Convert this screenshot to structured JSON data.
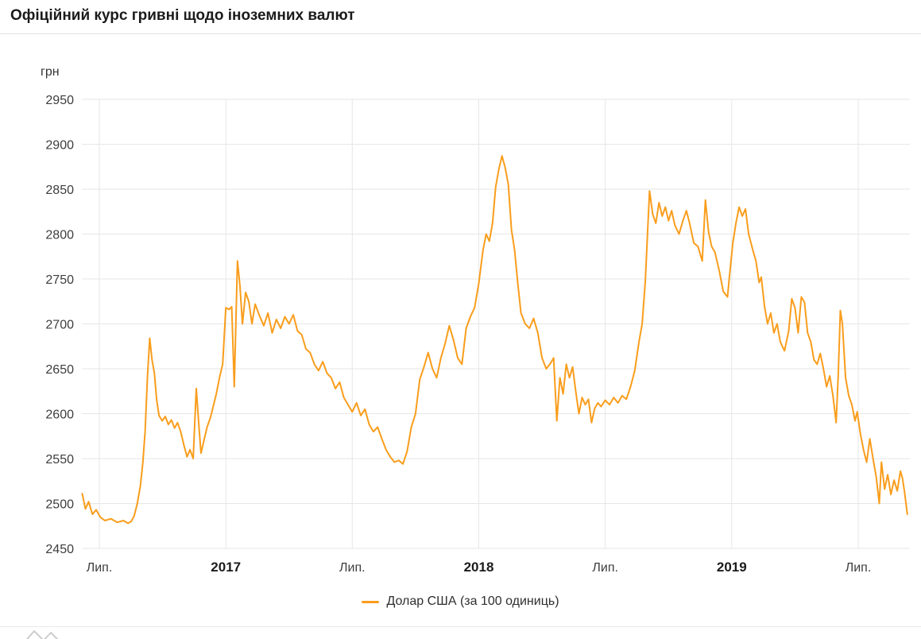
{
  "header": {
    "title": "Офіційний курс гривні щодо іноземних валют"
  },
  "chart": {
    "unit_label": "грн",
    "line_color": "#F99D1C",
    "grid_color": "#e6e6e6",
    "tick_text_color": "#3d3d3d",
    "year_text_color": "#1b1b1b",
    "legend_label": "Долар США (за 100 одиниць)"
  },
  "chart_data": {
    "type": "line",
    "title": "Офіційний курс гривні щодо іноземних валют",
    "xlabel": "",
    "ylabel": "грн",
    "ylim": [
      2450,
      2950
    ],
    "y_ticks": [
      2450,
      2500,
      2550,
      2600,
      2650,
      2700,
      2750,
      2800,
      2850,
      2900,
      2950
    ],
    "x_axis_unit": "months since Лип. (July) 2016; 0 = 2016-07, 6 = 2017-01, 36 = 2019-07",
    "xlim": [
      -0.83,
      38.45
    ],
    "x_ticks": [
      {
        "label": "Лип.",
        "m": 0,
        "bold": false
      },
      {
        "label": "2017",
        "m": 6,
        "bold": true
      },
      {
        "label": "Лип.",
        "m": 12,
        "bold": false
      },
      {
        "label": "2018",
        "m": 18,
        "bold": true
      },
      {
        "label": "Лип.",
        "m": 24,
        "bold": false
      },
      {
        "label": "2019",
        "m": 30,
        "bold": true
      },
      {
        "label": "Лип.",
        "m": 36,
        "bold": false
      }
    ],
    "grid": true,
    "legend_position": "bottom",
    "series": [
      {
        "name": "Долар США (за 100 одиниць)",
        "color": "#F99D1C",
        "points": [
          [
            -0.81,
            2511
          ],
          [
            -0.66,
            2494
          ],
          [
            -0.51,
            2502
          ],
          [
            -0.33,
            2488
          ],
          [
            -0.15,
            2493
          ],
          [
            0.04,
            2485
          ],
          [
            0.26,
            2481
          ],
          [
            0.55,
            2483
          ],
          [
            0.85,
            2479
          ],
          [
            1.14,
            2481
          ],
          [
            1.36,
            2478
          ],
          [
            1.51,
            2480
          ],
          [
            1.65,
            2486
          ],
          [
            1.8,
            2500
          ],
          [
            1.95,
            2520
          ],
          [
            2.06,
            2545
          ],
          [
            2.17,
            2580
          ],
          [
            2.28,
            2640
          ],
          [
            2.39,
            2684
          ],
          [
            2.5,
            2660
          ],
          [
            2.61,
            2645
          ],
          [
            2.72,
            2615
          ],
          [
            2.83,
            2598
          ],
          [
            2.98,
            2592
          ],
          [
            3.13,
            2597
          ],
          [
            3.27,
            2588
          ],
          [
            3.42,
            2593
          ],
          [
            3.57,
            2584
          ],
          [
            3.71,
            2590
          ],
          [
            3.86,
            2580
          ],
          [
            4.01,
            2565
          ],
          [
            4.16,
            2552
          ],
          [
            4.3,
            2560
          ],
          [
            4.45,
            2550
          ],
          [
            4.6,
            2628
          ],
          [
            4.71,
            2590
          ],
          [
            4.82,
            2556
          ],
          [
            4.96,
            2570
          ],
          [
            5.11,
            2585
          ],
          [
            5.26,
            2595
          ],
          [
            5.4,
            2608
          ],
          [
            5.55,
            2622
          ],
          [
            5.7,
            2640
          ],
          [
            5.85,
            2655
          ],
          [
            6.0,
            2718
          ],
          [
            6.15,
            2716
          ],
          [
            6.28,
            2719
          ],
          [
            6.4,
            2630
          ],
          [
            6.55,
            2770
          ],
          [
            6.67,
            2742
          ],
          [
            6.79,
            2700
          ],
          [
            6.94,
            2735
          ],
          [
            7.09,
            2725
          ],
          [
            7.24,
            2700
          ],
          [
            7.39,
            2722
          ],
          [
            7.58,
            2710
          ],
          [
            7.8,
            2698
          ],
          [
            8.0,
            2712
          ],
          [
            8.2,
            2690
          ],
          [
            8.4,
            2705
          ],
          [
            8.6,
            2695
          ],
          [
            8.8,
            2708
          ],
          [
            9.0,
            2700
          ],
          [
            9.2,
            2710
          ],
          [
            9.4,
            2692
          ],
          [
            9.6,
            2688
          ],
          [
            9.8,
            2672
          ],
          [
            10.0,
            2668
          ],
          [
            10.2,
            2655
          ],
          [
            10.4,
            2648
          ],
          [
            10.6,
            2658
          ],
          [
            10.8,
            2645
          ],
          [
            11.0,
            2640
          ],
          [
            11.2,
            2628
          ],
          [
            11.4,
            2635
          ],
          [
            11.6,
            2618
          ],
          [
            11.8,
            2610
          ],
          [
            12.0,
            2602
          ],
          [
            12.2,
            2612
          ],
          [
            12.4,
            2598
          ],
          [
            12.6,
            2605
          ],
          [
            12.8,
            2588
          ],
          [
            13.0,
            2580
          ],
          [
            13.2,
            2585
          ],
          [
            13.4,
            2572
          ],
          [
            13.6,
            2560
          ],
          [
            13.8,
            2552
          ],
          [
            14.0,
            2546
          ],
          [
            14.2,
            2548
          ],
          [
            14.4,
            2544
          ],
          [
            14.6,
            2558
          ],
          [
            14.8,
            2585
          ],
          [
            15.0,
            2600
          ],
          [
            15.2,
            2638
          ],
          [
            15.4,
            2652
          ],
          [
            15.6,
            2668
          ],
          [
            15.8,
            2650
          ],
          [
            16.0,
            2640
          ],
          [
            16.2,
            2662
          ],
          [
            16.4,
            2678
          ],
          [
            16.6,
            2698
          ],
          [
            16.8,
            2682
          ],
          [
            17.0,
            2662
          ],
          [
            17.2,
            2655
          ],
          [
            17.4,
            2695
          ],
          [
            17.6,
            2708
          ],
          [
            17.8,
            2718
          ],
          [
            18.0,
            2745
          ],
          [
            18.2,
            2782
          ],
          [
            18.35,
            2800
          ],
          [
            18.5,
            2792
          ],
          [
            18.65,
            2812
          ],
          [
            18.8,
            2852
          ],
          [
            18.95,
            2872
          ],
          [
            19.1,
            2887
          ],
          [
            19.25,
            2874
          ],
          [
            19.4,
            2855
          ],
          [
            19.55,
            2805
          ],
          [
            19.7,
            2782
          ],
          [
            19.85,
            2745
          ],
          [
            20.0,
            2712
          ],
          [
            20.2,
            2700
          ],
          [
            20.4,
            2695
          ],
          [
            20.6,
            2706
          ],
          [
            20.8,
            2690
          ],
          [
            21.0,
            2662
          ],
          [
            21.2,
            2650
          ],
          [
            21.4,
            2656
          ],
          [
            21.55,
            2662
          ],
          [
            21.7,
            2592
          ],
          [
            21.85,
            2640
          ],
          [
            22.0,
            2622
          ],
          [
            22.15,
            2655
          ],
          [
            22.3,
            2640
          ],
          [
            22.45,
            2652
          ],
          [
            22.6,
            2625
          ],
          [
            22.75,
            2600
          ],
          [
            22.9,
            2618
          ],
          [
            23.05,
            2610
          ],
          [
            23.2,
            2616
          ],
          [
            23.35,
            2590
          ],
          [
            23.5,
            2606
          ],
          [
            23.65,
            2612
          ],
          [
            23.8,
            2608
          ],
          [
            24.0,
            2615
          ],
          [
            24.2,
            2610
          ],
          [
            24.4,
            2618
          ],
          [
            24.6,
            2612
          ],
          [
            24.8,
            2620
          ],
          [
            25.0,
            2616
          ],
          [
            25.2,
            2630
          ],
          [
            25.4,
            2648
          ],
          [
            25.6,
            2680
          ],
          [
            25.75,
            2700
          ],
          [
            25.9,
            2748
          ],
          [
            26.0,
            2798
          ],
          [
            26.1,
            2848
          ],
          [
            26.25,
            2822
          ],
          [
            26.4,
            2812
          ],
          [
            26.55,
            2835
          ],
          [
            26.7,
            2820
          ],
          [
            26.85,
            2830
          ],
          [
            27.0,
            2815
          ],
          [
            27.15,
            2826
          ],
          [
            27.3,
            2810
          ],
          [
            27.5,
            2800
          ],
          [
            27.7,
            2816
          ],
          [
            27.85,
            2826
          ],
          [
            28.0,
            2812
          ],
          [
            28.2,
            2790
          ],
          [
            28.4,
            2786
          ],
          [
            28.6,
            2770
          ],
          [
            28.75,
            2838
          ],
          [
            28.9,
            2802
          ],
          [
            29.05,
            2786
          ],
          [
            29.2,
            2780
          ],
          [
            29.4,
            2760
          ],
          [
            29.6,
            2736
          ],
          [
            29.8,
            2730
          ],
          [
            29.9,
            2755
          ],
          [
            30.05,
            2790
          ],
          [
            30.2,
            2812
          ],
          [
            30.35,
            2830
          ],
          [
            30.5,
            2820
          ],
          [
            30.65,
            2828
          ],
          [
            30.8,
            2800
          ],
          [
            31.0,
            2782
          ],
          [
            31.15,
            2770
          ],
          [
            31.3,
            2746
          ],
          [
            31.4,
            2752
          ],
          [
            31.55,
            2720
          ],
          [
            31.7,
            2700
          ],
          [
            31.85,
            2712
          ],
          [
            32.0,
            2690
          ],
          [
            32.15,
            2700
          ],
          [
            32.3,
            2680
          ],
          [
            32.5,
            2670
          ],
          [
            32.7,
            2692
          ],
          [
            32.85,
            2728
          ],
          [
            33.0,
            2718
          ],
          [
            33.15,
            2690
          ],
          [
            33.3,
            2730
          ],
          [
            33.45,
            2724
          ],
          [
            33.6,
            2690
          ],
          [
            33.75,
            2680
          ],
          [
            33.9,
            2660
          ],
          [
            34.05,
            2655
          ],
          [
            34.2,
            2667
          ],
          [
            34.35,
            2650
          ],
          [
            34.5,
            2630
          ],
          [
            34.65,
            2642
          ],
          [
            34.8,
            2620
          ],
          [
            34.95,
            2590
          ],
          [
            35.05,
            2642
          ],
          [
            35.15,
            2715
          ],
          [
            35.25,
            2700
          ],
          [
            35.4,
            2640
          ],
          [
            35.55,
            2620
          ],
          [
            35.7,
            2610
          ],
          [
            35.85,
            2592
          ],
          [
            35.95,
            2602
          ],
          [
            36.1,
            2578
          ],
          [
            36.25,
            2560
          ],
          [
            36.4,
            2546
          ],
          [
            36.55,
            2572
          ],
          [
            36.7,
            2550
          ],
          [
            36.85,
            2530
          ],
          [
            37.0,
            2500
          ],
          [
            37.1,
            2546
          ],
          [
            37.25,
            2516
          ],
          [
            37.4,
            2532
          ],
          [
            37.55,
            2510
          ],
          [
            37.7,
            2526
          ],
          [
            37.85,
            2514
          ],
          [
            38.0,
            2536
          ],
          [
            38.1,
            2528
          ],
          [
            38.2,
            2512
          ],
          [
            38.33,
            2488
          ]
        ]
      }
    ]
  }
}
